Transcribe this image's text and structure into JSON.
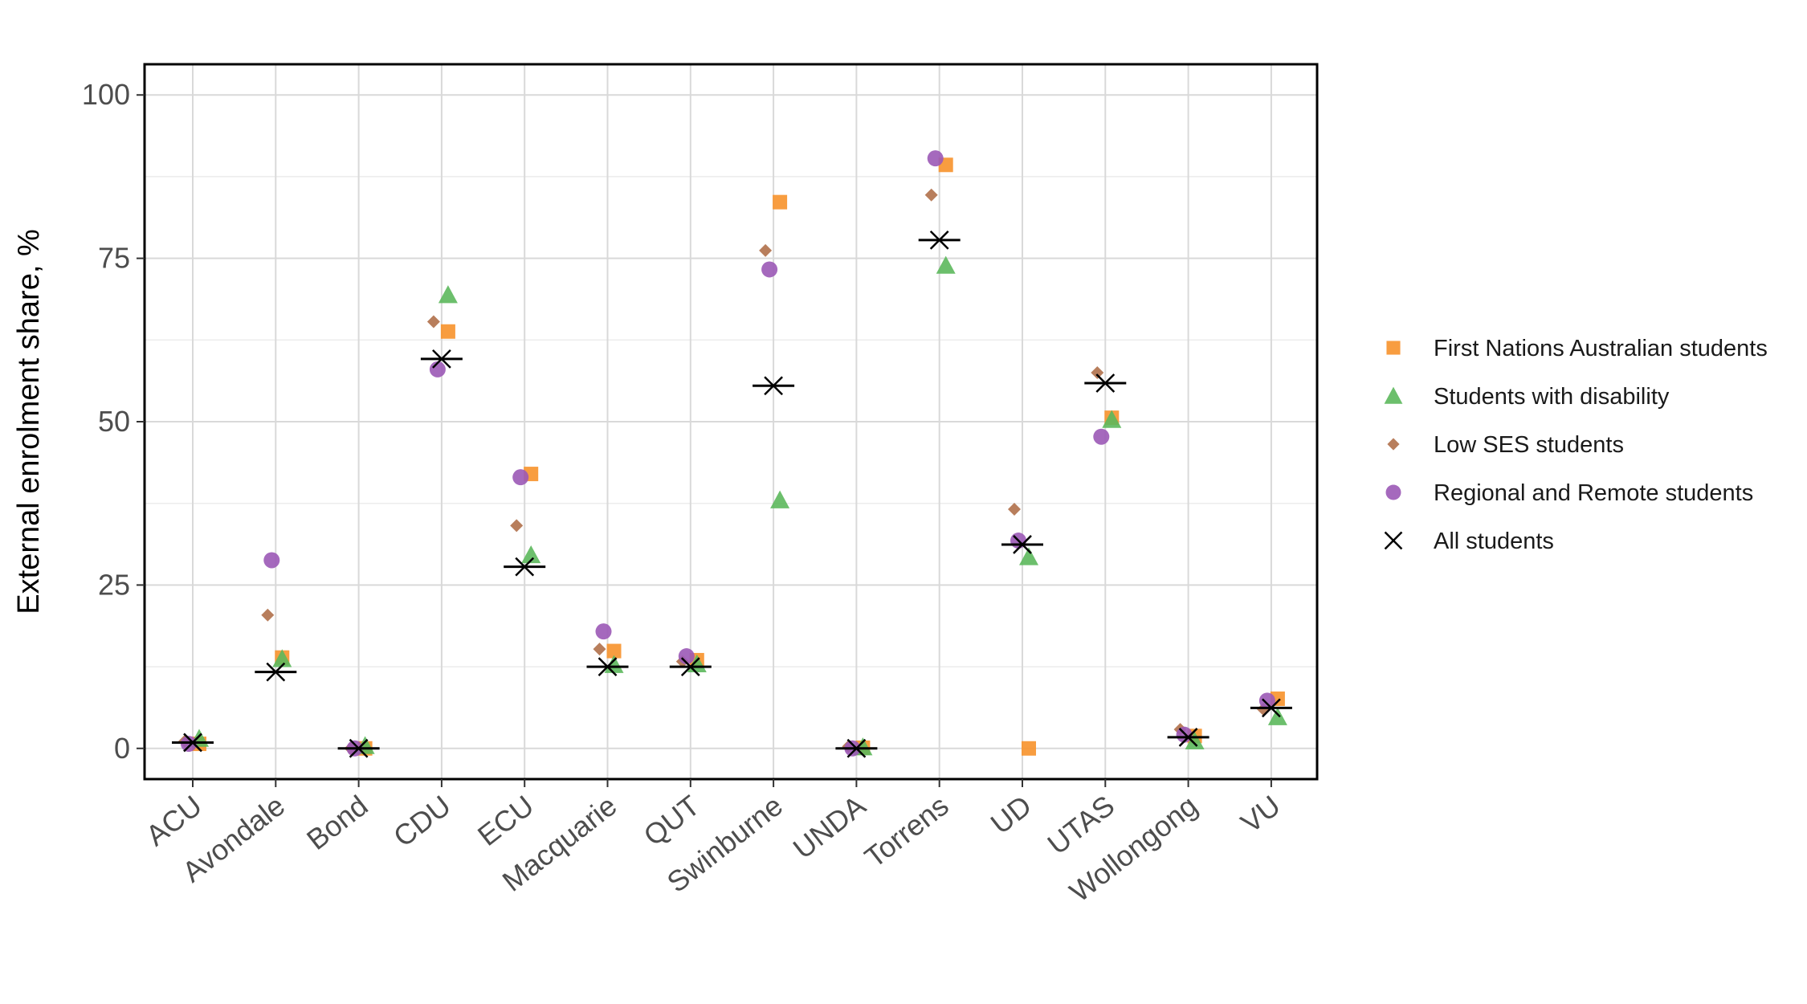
{
  "chart_data": {
    "type": "scatter",
    "ylabel": "External enrolment share, %",
    "xlabel": "",
    "ylim": [
      -4.7,
      104.7
    ],
    "yticks": [
      0,
      25,
      50,
      75,
      100
    ],
    "grid": true,
    "legend_position": "right",
    "categories": [
      "ACU",
      "Avondale",
      "Bond",
      "CDU",
      "ECU",
      "Macquarie",
      "QUT",
      "Swinburne",
      "UNDA",
      "Torrens",
      "UD",
      "UTAS",
      "Wollongong",
      "VU"
    ],
    "series": [
      {
        "name": "First Nations Australian students",
        "marker": "square",
        "color": "#f7922b",
        "values": [
          0.7,
          13.9,
          0.0,
          63.8,
          42.0,
          14.9,
          13.5,
          83.6,
          0.1,
          89.3,
          0.0,
          50.6,
          1.9,
          7.6
        ]
      },
      {
        "name": "Students with disability",
        "marker": "triangle",
        "color": "#5cb85c",
        "values": [
          1.5,
          13.7,
          0.4,
          69.4,
          29.6,
          12.8,
          12.9,
          38.0,
          0.2,
          73.9,
          29.3,
          50.3,
          1.1,
          4.8
        ]
      },
      {
        "name": "Low SES students",
        "marker": "diamond",
        "color": "#b0704a",
        "values": [
          1.1,
          20.4,
          0.0,
          65.3,
          34.1,
          15.2,
          13.3,
          76.2,
          0.3,
          84.7,
          36.6,
          57.5,
          2.9,
          6.0
        ]
      },
      {
        "name": "Regional and Remote students",
        "marker": "circle",
        "color": "#9b59b6",
        "values": [
          0.7,
          28.8,
          0.0,
          58.0,
          41.5,
          17.9,
          14.1,
          73.3,
          0.0,
          90.3,
          31.8,
          47.7,
          2.1,
          7.3
        ]
      },
      {
        "name": "All students",
        "marker": "x",
        "color": "#000000",
        "values": [
          0.9,
          11.7,
          0.0,
          59.6,
          27.8,
          12.5,
          12.5,
          55.5,
          0.0,
          77.8,
          31.2,
          55.9,
          1.7,
          6.2
        ]
      }
    ]
  }
}
